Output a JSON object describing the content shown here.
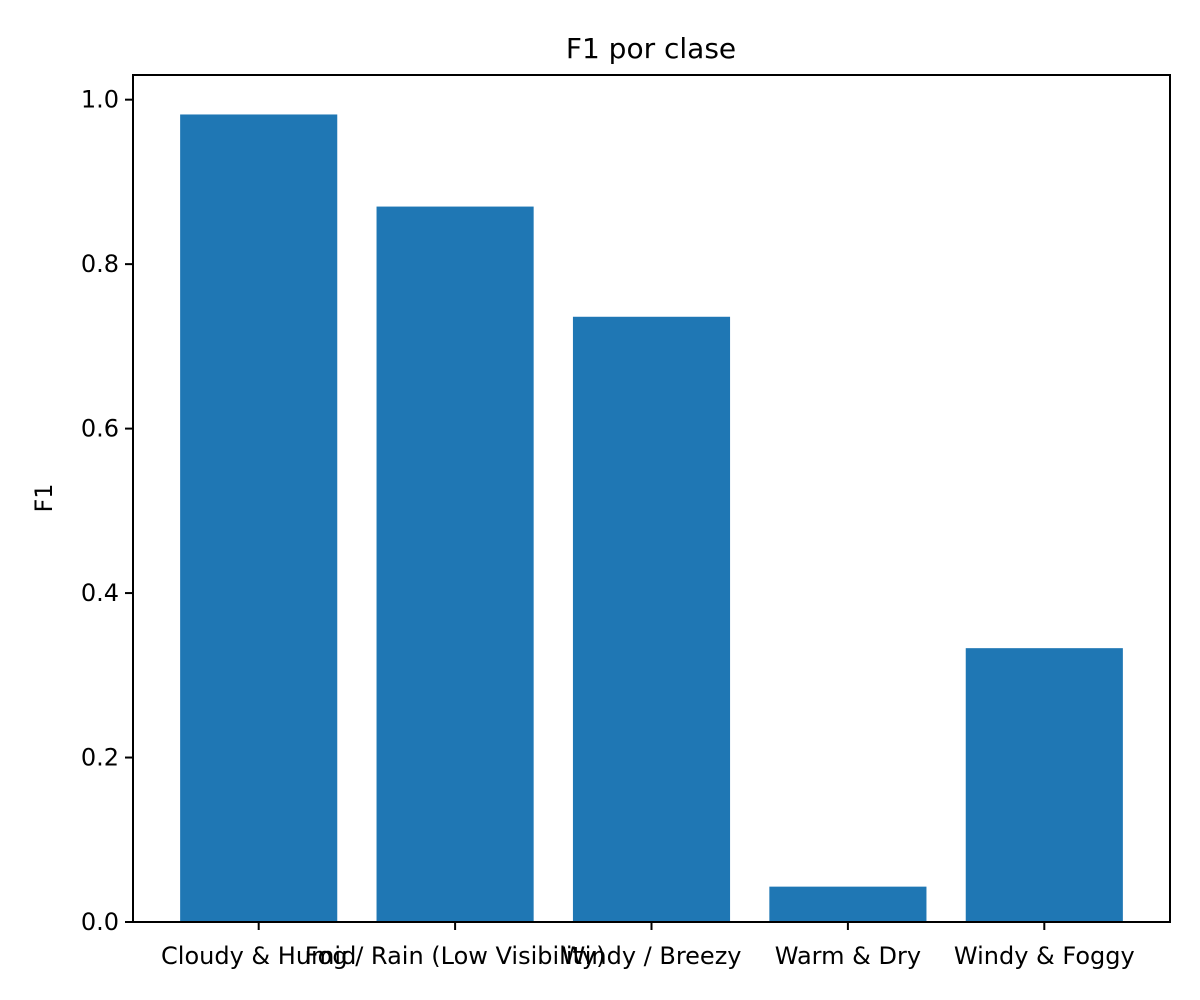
{
  "chart_data": {
    "type": "bar",
    "title": "F1 por clase",
    "xlabel": "",
    "ylabel": "F1",
    "categories": [
      "Cloudy & Humid",
      "Fog / Rain (Low Visibility)",
      "Windy / Breezy",
      "Warm & Dry",
      "Windy & Foggy"
    ],
    "values": [
      0.982,
      0.87,
      0.736,
      0.043,
      0.333
    ],
    "ylim": [
      0,
      1.03
    ],
    "yticks": [
      0.0,
      0.2,
      0.4,
      0.6,
      0.8,
      1.0
    ],
    "ytick_labels": [
      "0.0",
      "0.2",
      "0.4",
      "0.6",
      "0.8",
      "1.0"
    ],
    "grid": false,
    "bar_color": "#1f77b4"
  }
}
